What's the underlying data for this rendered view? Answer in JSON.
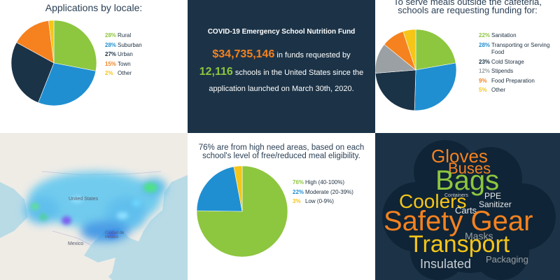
{
  "chart_data": [
    {
      "type": "pie",
      "title": "Applications by locale:",
      "series": [
        {
          "label": "Rural",
          "pct": "28%",
          "value": 28,
          "color": "#8dc63f"
        },
        {
          "label": "Suburban",
          "pct": "28%",
          "value": 28,
          "color": "#1f8fd1"
        },
        {
          "label": "Urban",
          "pct": "27%",
          "value": 27,
          "color": "#1b3347"
        },
        {
          "label": "Town",
          "pct": "15%",
          "value": 15,
          "color": "#f5821f"
        },
        {
          "label": "Other",
          "pct": "2%",
          "value": 2,
          "color": "#f5c518"
        }
      ]
    },
    {
      "type": "pie",
      "title": "To serve meals outside the cafeteria, schools are requesting funding for:",
      "series": [
        {
          "label": "Sanitation",
          "pct": "22%",
          "value": 22,
          "color": "#8dc63f"
        },
        {
          "label": "Transporting or Serving Food",
          "pct": "28%",
          "value": 28,
          "color": "#1f8fd1"
        },
        {
          "label": "Cold Storage",
          "pct": "23%",
          "value": 23,
          "color": "#1b3347"
        },
        {
          "label": "Stipends",
          "pct": "12%",
          "value": 12,
          "color": "#9aa0a3"
        },
        {
          "label": "Food Preparation",
          "pct": "9%",
          "value": 9,
          "color": "#f5821f"
        },
        {
          "label": "Other",
          "pct": "5%",
          "value": 5,
          "color": "#f5c518"
        }
      ]
    },
    {
      "type": "pie",
      "title": "76% are from high need areas, based on each school's level of free/reduced meal eligibility.",
      "series": [
        {
          "label": "High (40-100%)",
          "pct": "76%",
          "value": 76,
          "color": "#8dc63f"
        },
        {
          "label": "Moderate (20-39%)",
          "pct": "22%",
          "value": 22,
          "color": "#1f8fd1"
        },
        {
          "label": "Low (0-9%)",
          "pct": "3%",
          "value": 3,
          "color": "#f5c518"
        }
      ]
    }
  ],
  "fund": {
    "title": "COVID-19 Emergency School Nutrition Fund",
    "amount": "$34,735,146",
    "amount_suffix": " in funds requested by",
    "schools": "12,116",
    "schools_suffix": " schools in the United States since the application launched on March 30th, 2020."
  },
  "map": {
    "labels": {
      "us": "United States",
      "mexico": "Mexico",
      "city": "Ciudad de México"
    }
  },
  "word_cloud": [
    {
      "word": "Gloves",
      "color": "#f5821f"
    },
    {
      "word": "Buses",
      "color": "#f5821f"
    },
    {
      "word": "Bags",
      "color": "#8dc63f"
    },
    {
      "word": "Containers",
      "color": "#c9cfd4"
    },
    {
      "word": "Coolers",
      "color": "#f5c518"
    },
    {
      "word": "PPE",
      "color": "#e8eaec"
    },
    {
      "word": "Sanitizer",
      "color": "#e8eaec"
    },
    {
      "word": "Carts",
      "color": "#e8eaec"
    },
    {
      "word": "Safety Gear",
      "color": "#f5821f"
    },
    {
      "word": "Masks",
      "color": "#9aa0a3"
    },
    {
      "word": "Transport",
      "color": "#f5c518"
    },
    {
      "word": "Insulated",
      "color": "#c9cfd4"
    },
    {
      "word": "Packaging",
      "color": "#9aa0a3"
    }
  ]
}
